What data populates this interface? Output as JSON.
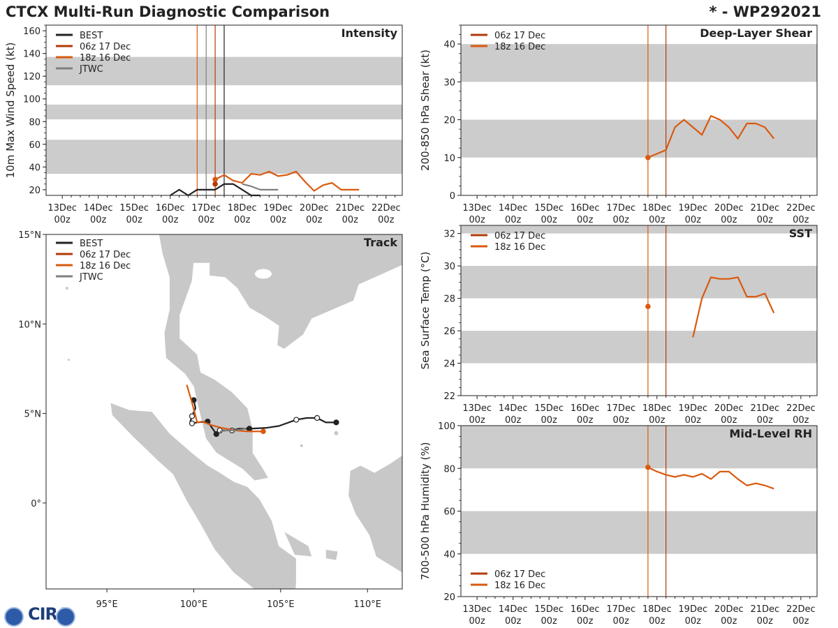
{
  "header": {
    "title": "CTCX Multi-Run Diagnostic Comparison",
    "storm_id": "* - WP292021"
  },
  "colors": {
    "best": "#222222",
    "run_06z": "#b23a0a",
    "run_18z": "#d95a10",
    "jtwc": "#808080",
    "band": "#cccccc",
    "land": "#c8c8c8",
    "coast": "#ffffff"
  },
  "time_axis": {
    "ticks": [
      {
        "day": "13Dec",
        "hour": "00z"
      },
      {
        "day": "14Dec",
        "hour": "00z"
      },
      {
        "day": "15Dec",
        "hour": "00z"
      },
      {
        "day": "16Dec",
        "hour": "00z"
      },
      {
        "day": "17Dec",
        "hour": "00z"
      },
      {
        "day": "18Dec",
        "hour": "00z"
      },
      {
        "day": "19Dec",
        "hour": "00z"
      },
      {
        "day": "20Dec",
        "hour": "00z"
      },
      {
        "day": "21Dec",
        "hour": "00z"
      },
      {
        "day": "22Dec",
        "hour": "00z"
      }
    ],
    "xlim": [
      -0.45,
      9.45
    ],
    "note": "x in days after 13Dec 00z"
  },
  "chart_data": [
    {
      "id": "intensity",
      "type": "line",
      "title": "Intensity",
      "ylabel": "10m Max Wind Speed (kt)",
      "ylim": [
        15,
        165
      ],
      "yticks": [
        20,
        40,
        60,
        80,
        100,
        120,
        140,
        160
      ],
      "bands": [
        [
          34,
          64
        ],
        [
          82,
          95
        ],
        [
          112,
          137
        ]
      ],
      "legend": [
        "BEST",
        "06z 17 Dec",
        "18z 16 Dec",
        "JTWC"
      ],
      "vlines": [
        {
          "x": 3.75,
          "series": "18z 16 Dec"
        },
        {
          "x": 4.0,
          "series": "JTWC"
        },
        {
          "x": 4.25,
          "series": "06z 17 Dec"
        },
        {
          "x": 4.5,
          "series": "BEST"
        }
      ],
      "series": [
        {
          "name": "BEST",
          "x": [
            3.0,
            3.25,
            3.5,
            3.75,
            4.0,
            4.25,
            4.5,
            4.75,
            5.0,
            5.25,
            5.5
          ],
          "y": [
            15,
            20,
            15,
            20,
            20,
            20,
            25,
            25,
            20,
            15,
            15
          ]
        },
        {
          "name": "06z 17 Dec",
          "x": [
            4.25
          ],
          "y": [
            25
          ],
          "marker_first": true
        },
        {
          "name": "18z 16 Dec",
          "x": [
            4.25,
            4.5,
            4.75,
            5.0,
            5.25,
            5.5,
            5.75,
            6.0,
            6.25,
            6.5,
            6.75,
            7.0,
            7.25,
            7.5,
            7.75,
            8.0,
            8.25
          ],
          "y": [
            29,
            33,
            28,
            26,
            34,
            33,
            36,
            32,
            33,
            36,
            27,
            19,
            24,
            26,
            20,
            20,
            20
          ],
          "marker_first": true
        },
        {
          "name": "JTWC",
          "x": [
            5.0,
            5.25,
            5.5,
            5.75,
            6.0
          ],
          "y": [
            25,
            23,
            20,
            20,
            20
          ]
        }
      ]
    },
    {
      "id": "shear",
      "type": "line",
      "title": "Deep-Layer Shear",
      "ylabel": "200-850 hPa Shear (kt)",
      "ylim": [
        0,
        45
      ],
      "yticks": [
        0,
        10,
        20,
        30,
        40
      ],
      "bands": [
        [
          10,
          20
        ],
        [
          30,
          40
        ]
      ],
      "legend": [
        "06z 17 Dec",
        "18z 16 Dec"
      ],
      "vlines": [
        {
          "x": 4.75,
          "series": "18z 16 Dec"
        },
        {
          "x": 5.25,
          "series": "06z 17 Dec"
        }
      ],
      "series": [
        {
          "name": "06z 17 Dec",
          "x": [],
          "y": []
        },
        {
          "name": "18z 16 Dec",
          "x": [
            4.75,
            5.0,
            5.25,
            5.5,
            5.75,
            6.0,
            6.25,
            6.5,
            6.75,
            7.0,
            7.25,
            7.5,
            7.75,
            8.0,
            8.25
          ],
          "y": [
            10,
            11,
            12,
            18,
            20,
            18,
            16,
            21,
            20,
            18,
            15,
            19,
            19,
            18,
            15
          ],
          "marker_first": true
        }
      ]
    },
    {
      "id": "sst",
      "type": "line",
      "title": "SST",
      "ylabel": "Sea Surface Temp (°C)",
      "ylim": [
        22,
        32.5
      ],
      "yticks": [
        22,
        24,
        26,
        28,
        30,
        32
      ],
      "bands": [
        [
          24,
          26
        ],
        [
          28,
          30
        ],
        [
          32,
          32.5
        ]
      ],
      "legend": [
        "06z 17 Dec",
        "18z 16 Dec"
      ],
      "vlines": [
        {
          "x": 4.75,
          "series": "18z 16 Dec"
        },
        {
          "x": 5.25,
          "series": "06z 17 Dec"
        }
      ],
      "series": [
        {
          "name": "06z 17 Dec",
          "x": [],
          "y": []
        },
        {
          "name": "18z 16 Dec",
          "x": [
            4.75
          ],
          "y": [
            27.5
          ],
          "marker_first": true
        },
        {
          "name": "18z 16 Dec",
          "x": [
            6.0,
            6.25,
            6.5,
            6.75,
            7.0,
            7.25,
            7.5,
            7.75,
            8.0,
            8.25
          ],
          "y": [
            25.6,
            28.0,
            29.3,
            29.2,
            29.2,
            29.3,
            28.1,
            28.1,
            28.3,
            27.1
          ]
        }
      ]
    },
    {
      "id": "rh",
      "type": "line",
      "title": "Mid-Level RH",
      "ylabel": "700-500 hPa Humidity (%)",
      "ylim": [
        20,
        100
      ],
      "yticks": [
        20,
        40,
        60,
        80,
        100
      ],
      "bands": [
        [
          40,
          60
        ],
        [
          80,
          100
        ]
      ],
      "legend": [
        "06z 17 Dec",
        "18z 16 Dec"
      ],
      "vlines": [
        {
          "x": 4.75,
          "series": "18z 16 Dec"
        },
        {
          "x": 5.25,
          "series": "06z 17 Dec"
        }
      ],
      "series": [
        {
          "name": "06z 17 Dec",
          "x": [],
          "y": []
        },
        {
          "name": "18z 16 Dec",
          "x": [
            4.75,
            5.0,
            5.25,
            5.5,
            5.75,
            6.0,
            6.25,
            6.5,
            6.75,
            7.0,
            7.25,
            7.5,
            7.75,
            8.0,
            8.25
          ],
          "y": [
            80.5,
            78.5,
            77,
            76,
            77,
            76,
            77.5,
            75,
            78.5,
            78.5,
            75,
            72,
            73,
            72,
            70.5
          ],
          "marker_first": true
        }
      ]
    },
    {
      "id": "track",
      "type": "scatter",
      "title": "Track",
      "xlim": [
        91.5,
        112
      ],
      "ylim": [
        -4.8,
        15
      ],
      "xticks": [
        {
          "v": 95,
          "label": "95°E"
        },
        {
          "v": 100,
          "label": "100°E"
        },
        {
          "v": 105,
          "label": "105°E"
        },
        {
          "v": 110,
          "label": "110°E"
        }
      ],
      "yticks": [
        {
          "v": 15,
          "label": "15°N"
        },
        {
          "v": 10,
          "label": "10°N"
        },
        {
          "v": 5,
          "label": "5°N"
        },
        {
          "v": 0,
          "label": "0°"
        }
      ],
      "legend": [
        "BEST",
        "06z 17 Dec",
        "18z 16 Dec",
        "JTWC"
      ],
      "series": [
        {
          "name": "BEST",
          "lon": [
            108.2,
            107.6,
            107.1,
            106.5,
            105.9,
            104.9,
            104.2,
            103.2,
            102.6,
            102.2,
            101.5,
            101.3,
            100.8,
            100.2,
            99.9,
            99.8,
            99.9,
            100.1,
            100.0
          ],
          "lat": [
            4.5,
            4.5,
            4.75,
            4.75,
            4.65,
            4.3,
            4.2,
            4.15,
            4.15,
            4.05,
            4.05,
            3.85,
            4.55,
            4.5,
            4.45,
            4.55,
            4.85,
            5.3,
            5.75
          ],
          "filled": [
            true,
            false,
            false,
            true,
            false,
            false,
            false,
            true,
            false,
            false,
            false,
            true,
            true,
            false,
            false,
            true,
            false,
            false,
            true
          ],
          "dot": [
            true,
            false,
            true,
            false,
            true,
            false,
            false,
            true,
            false,
            true,
            true,
            true,
            true,
            false,
            true,
            false,
            true,
            false,
            true
          ]
        },
        {
          "name": "18z 16 Dec",
          "lon": [
            99.6,
            99.9,
            100.2,
            100.5,
            101.0,
            101.6,
            102.4,
            103.1,
            104.0
          ],
          "lat": [
            6.6,
            5.6,
            4.5,
            4.55,
            4.35,
            4.2,
            4.05,
            4.0,
            4.0
          ],
          "dot_last": true
        },
        {
          "name": "JTWC",
          "lon": [
            101.5,
            101.9,
            102.3,
            102.7,
            103.0
          ],
          "lat": [
            4.0,
            4.05,
            4.05,
            4.1,
            4.15
          ]
        },
        {
          "name": "06z 17 Dec",
          "lon": [],
          "lat": []
        }
      ]
    }
  ],
  "logo": {
    "text": "CIRA"
  }
}
